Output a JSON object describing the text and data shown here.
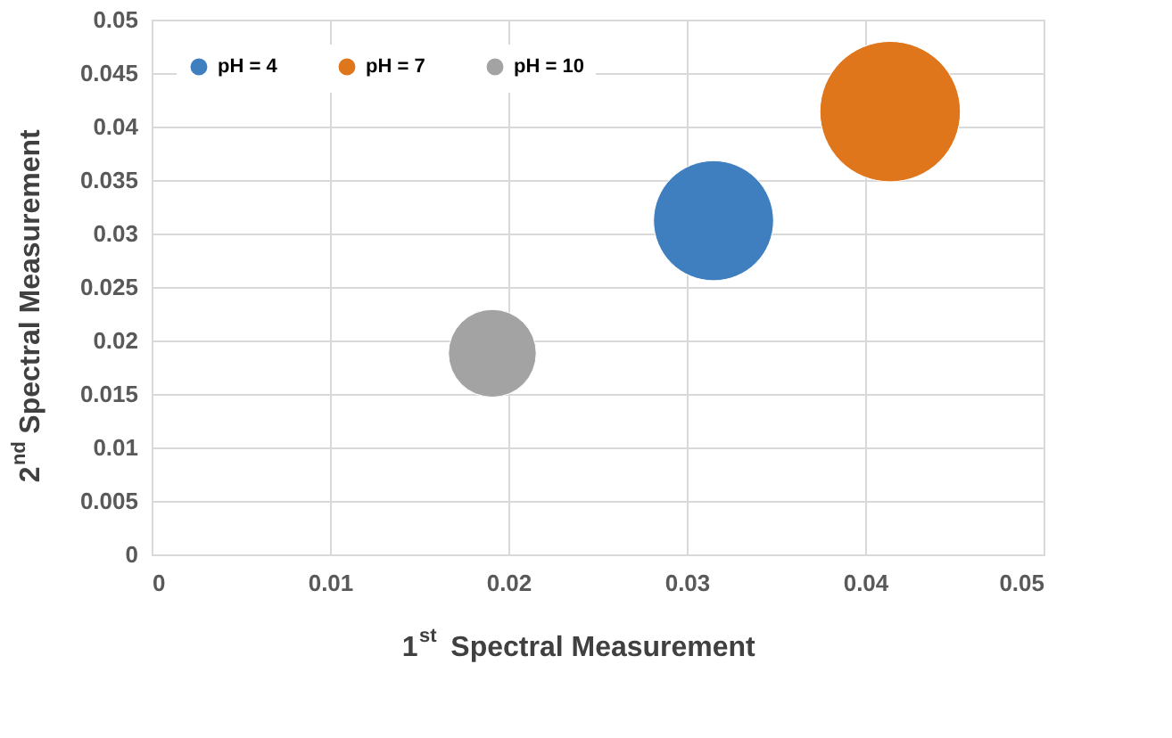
{
  "chart_data": {
    "type": "bubble",
    "xlabel": "1$^{st}$ Spectral Measurement",
    "ylabel": "2$^{nd}$ Spectral Measurement",
    "series": [
      {
        "name": "pH = 4",
        "color": "#3f7fc0",
        "x": [
          0.0315
        ],
        "values": [
          0.0312
        ],
        "sizes": [
          0.73
        ]
      },
      {
        "name": "pH = 7",
        "color": "#e0761c",
        "x": [
          0.0414
        ],
        "values": [
          0.0414
        ],
        "sizes": [
          1
        ]
      },
      {
        "name": "pH = 10",
        "color": "#a3a3a3",
        "x": [
          0.0191
        ],
        "values": [
          0.0188
        ],
        "sizes": [
          0.39
        ]
      }
    ],
    "xlim": [
      0,
      0.05
    ],
    "xticks": [
      0,
      0.01,
      0.02,
      0.03,
      0.04,
      0.05
    ],
    "ylim": [
      0,
      0.05
    ],
    "yticks": [
      0,
      0.005,
      0.01,
      0.015,
      0.02,
      0.025,
      0.03,
      0.035,
      0.04,
      0.045,
      0.05
    ],
    "grid": true,
    "legend": "top left"
  }
}
